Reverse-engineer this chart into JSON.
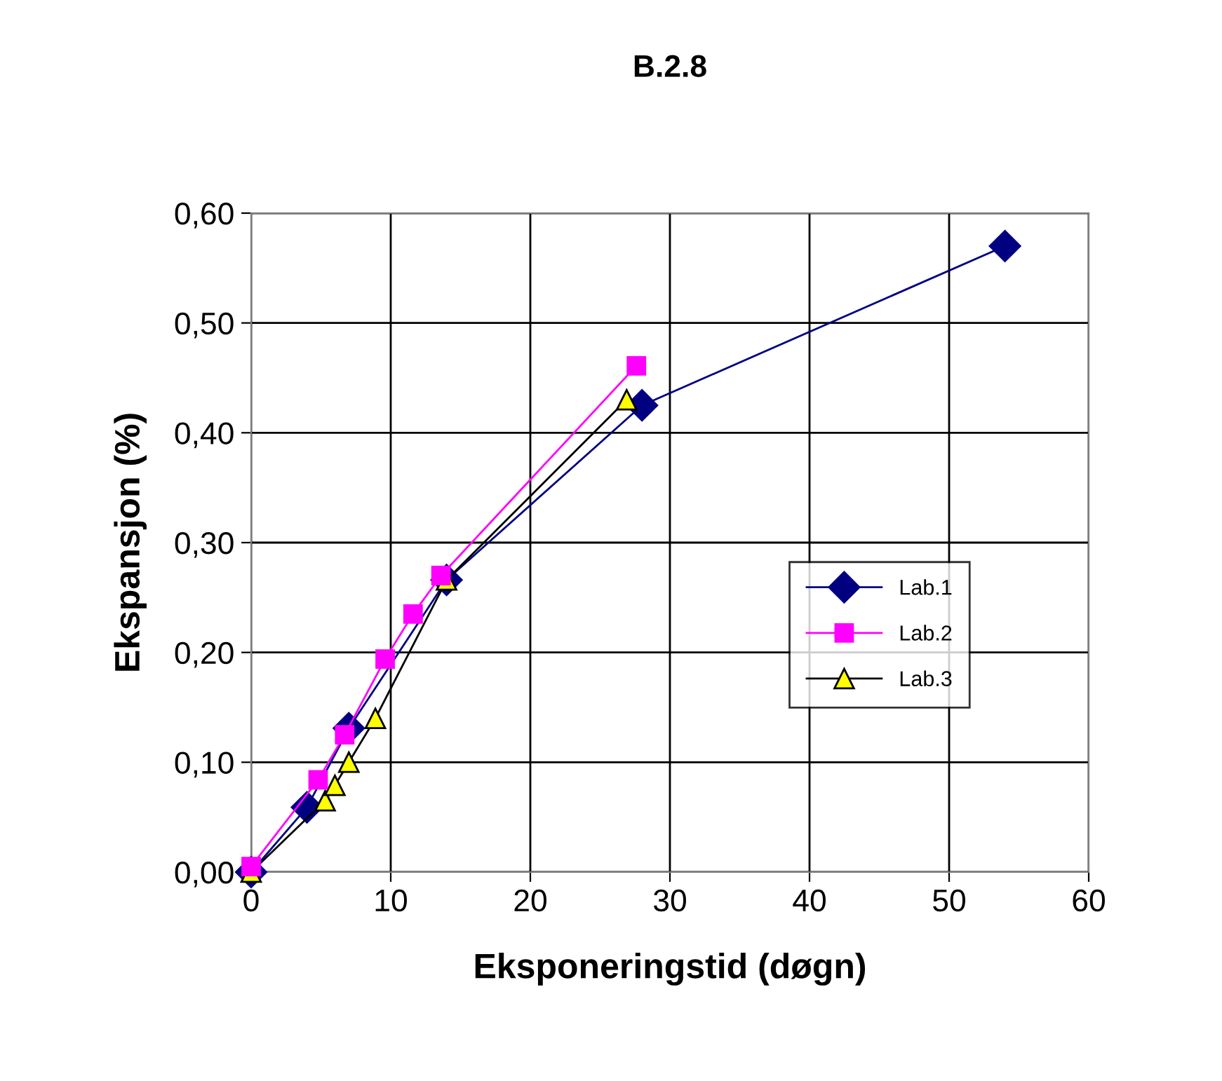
{
  "chart_data": {
    "type": "line",
    "title": "B.2.8",
    "xlabel": "Eksponeringstid (døgn)",
    "ylabel": "Ekspansjon (%)",
    "xlim": [
      0,
      60
    ],
    "xticks": [
      0,
      10,
      20,
      30,
      40,
      50,
      60
    ],
    "ylim": [
      0,
      0.6
    ],
    "yticks": [
      {
        "value": 0,
        "label": "0,00"
      },
      {
        "value": 0.1,
        "label": "0,10"
      },
      {
        "value": 0.2,
        "label": "0,20"
      },
      {
        "value": 0.3,
        "label": "0,30"
      },
      {
        "value": 0.4,
        "label": "0,40"
      },
      {
        "value": 0.5,
        "label": "0,50"
      },
      {
        "value": 0.6,
        "label": "0,60"
      }
    ],
    "grid": true,
    "legend": "right",
    "line_style": "solid",
    "series": [
      {
        "name": "Lab.1",
        "color": "#000080",
        "marker": "diamond",
        "x": [
          0,
          4,
          7,
          14,
          28,
          54
        ],
        "values": [
          0,
          0.059,
          0.131,
          0.266,
          0.425,
          0.57
        ]
      },
      {
        "name": "Lab.2",
        "color": "#ff00ff",
        "marker": "square",
        "x": [
          0,
          4.8,
          6.7,
          9.6,
          11.6,
          13.6,
          27.6
        ],
        "values": [
          0.005,
          0.084,
          0.125,
          0.194,
          0.235,
          0.27,
          0.461
        ]
      },
      {
        "name": "Lab.3",
        "color": "#000000",
        "marker": "triangle",
        "x": [
          0,
          5.3,
          6.0,
          7.0,
          8.9,
          14,
          26.9
        ],
        "values": [
          0,
          0.065,
          0.079,
          0.1,
          0.14,
          0.266,
          0.43
        ]
      }
    ]
  }
}
